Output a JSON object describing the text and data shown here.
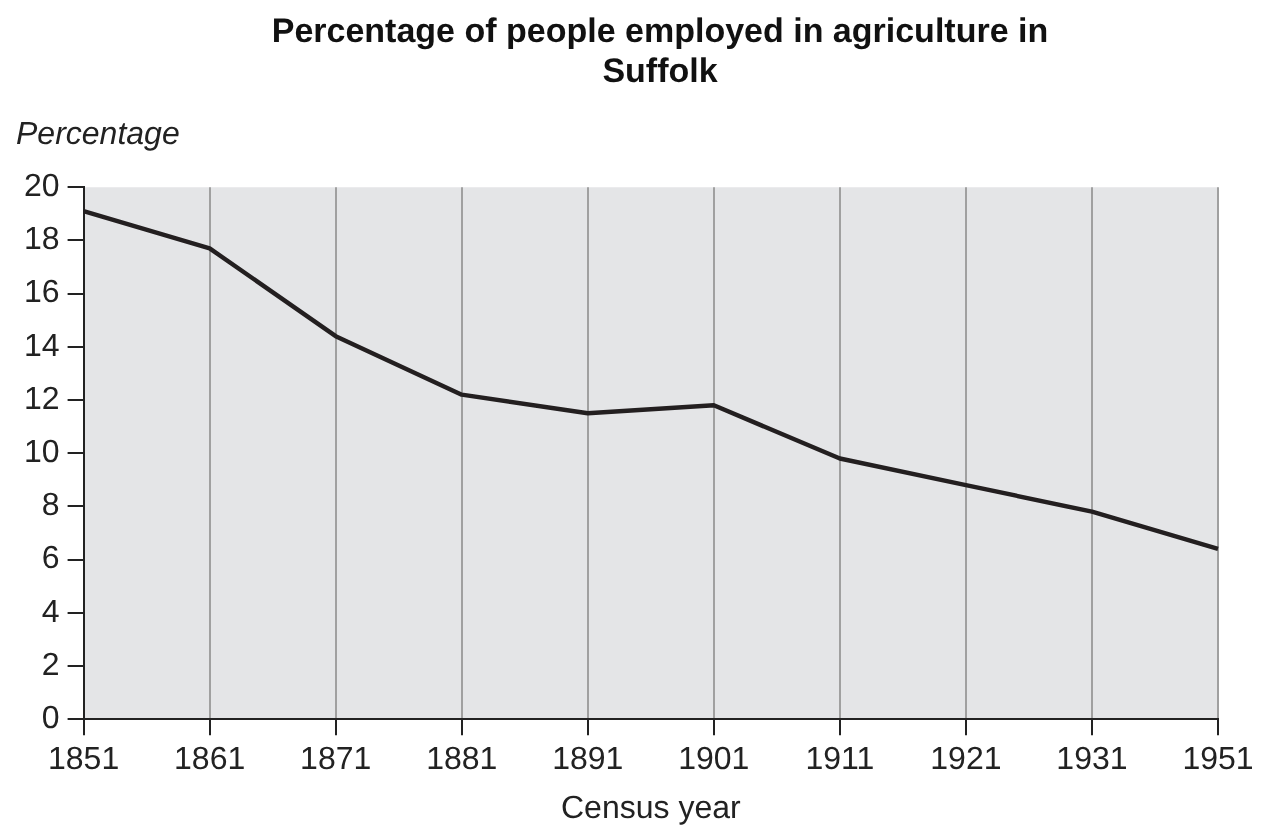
{
  "chart_data": {
    "type": "line",
    "title": "Percentage of people employed in agriculture in Suffolk",
    "xlabel": "Census year",
    "ylabel": "Percentage",
    "categories": [
      "1851",
      "1861",
      "1871",
      "1881",
      "1891",
      "1901",
      "1911",
      "1921",
      "1931",
      "1951"
    ],
    "series": [
      {
        "color": "#231f20",
        "values": [
          19.1,
          17.7,
          14.4,
          12.2,
          11.5,
          11.8,
          9.8,
          8.8,
          7.8,
          6.4
        ]
      }
    ],
    "ylim": [
      0,
      20
    ],
    "yticks": [
      0,
      2,
      4,
      6,
      8,
      10,
      12,
      14,
      16,
      18,
      20
    ],
    "grid": "x",
    "legend": false,
    "marker": "none",
    "line_style": "solid"
  }
}
